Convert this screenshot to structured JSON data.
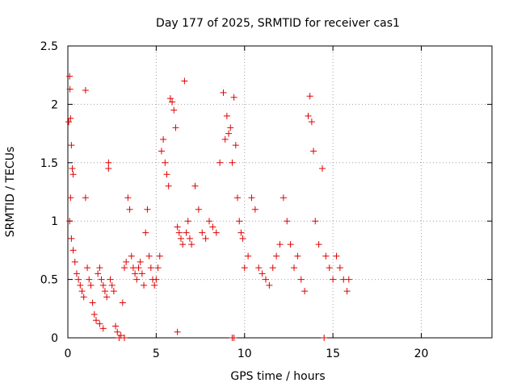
{
  "chart_data": {
    "type": "scatter",
    "title": "Day 177 of 2025, SRMTID for receiver cas1",
    "xlabel": "GPS time / hours",
    "ylabel": "SRMTID / TECUs",
    "xlim": [
      0,
      24
    ],
    "ylim": [
      0,
      2.5
    ],
    "x_ticks": [
      0,
      5,
      10,
      15,
      20
    ],
    "x_tick_labels": [
      "0",
      "5",
      "10",
      "15",
      "20"
    ],
    "y_ticks": [
      0,
      0.5,
      1,
      1.5,
      2,
      2.5
    ],
    "y_tick_labels": [
      "0",
      "0.5",
      "1",
      "1.5",
      "2",
      "2.5"
    ],
    "grid": true,
    "marker": "plus",
    "series": [
      {
        "name": "SRMTID",
        "color": "#e00000",
        "points": [
          [
            0.05,
            1.85
          ],
          [
            0.1,
            2.24
          ],
          [
            0.12,
            2.13
          ],
          [
            0.15,
            1.88
          ],
          [
            0.2,
            1.65
          ],
          [
            0.25,
            1.45
          ],
          [
            0.3,
            1.4
          ],
          [
            0.15,
            1.2
          ],
          [
            0.1,
            1.0
          ],
          [
            0.2,
            0.85
          ],
          [
            0.3,
            0.75
          ],
          [
            0.4,
            0.65
          ],
          [
            0.5,
            0.55
          ],
          [
            0.6,
            0.5
          ],
          [
            0.7,
            0.45
          ],
          [
            0.8,
            0.4
          ],
          [
            0.9,
            0.35
          ],
          [
            1.0,
            2.12
          ],
          [
            1.0,
            1.2
          ],
          [
            1.1,
            0.6
          ],
          [
            1.2,
            0.5
          ],
          [
            1.3,
            0.45
          ],
          [
            1.4,
            0.3
          ],
          [
            1.5,
            0.2
          ],
          [
            1.6,
            0.15
          ],
          [
            1.7,
            0.55
          ],
          [
            1.8,
            0.6
          ],
          [
            1.9,
            0.5
          ],
          [
            2.0,
            0.45
          ],
          [
            2.1,
            0.4
          ],
          [
            2.2,
            0.35
          ],
          [
            2.3,
            1.5
          ],
          [
            2.3,
            1.45
          ],
          [
            2.4,
            0.5
          ],
          [
            2.5,
            0.45
          ],
          [
            2.6,
            0.4
          ],
          [
            2.7,
            0.1
          ],
          [
            2.8,
            0.05
          ],
          [
            2.9,
            0.0
          ],
          [
            3.0,
            0.02
          ],
          [
            3.1,
            0.3
          ],
          [
            3.2,
            0.6
          ],
          [
            3.3,
            0.65
          ],
          [
            3.4,
            1.2
          ],
          [
            3.5,
            1.1
          ],
          [
            3.6,
            0.7
          ],
          [
            3.7,
            0.6
          ],
          [
            3.8,
            0.55
          ],
          [
            3.9,
            0.5
          ],
          [
            4.0,
            0.6
          ],
          [
            4.1,
            0.65
          ],
          [
            4.2,
            0.55
          ],
          [
            4.3,
            0.45
          ],
          [
            4.4,
            0.9
          ],
          [
            4.5,
            1.1
          ],
          [
            4.6,
            0.7
          ],
          [
            4.7,
            0.6
          ],
          [
            4.8,
            0.5
          ],
          [
            4.9,
            0.45
          ],
          [
            5.0,
            0.5
          ],
          [
            5.1,
            0.6
          ],
          [
            5.2,
            0.7
          ],
          [
            5.3,
            1.6
          ],
          [
            5.4,
            1.7
          ],
          [
            5.5,
            1.5
          ],
          [
            5.6,
            1.4
          ],
          [
            5.7,
            1.3
          ],
          [
            5.8,
            2.05
          ],
          [
            5.9,
            2.02
          ],
          [
            6.0,
            1.95
          ],
          [
            6.1,
            1.8
          ],
          [
            6.2,
            0.95
          ],
          [
            6.3,
            0.9
          ],
          [
            6.4,
            0.85
          ],
          [
            6.5,
            0.8
          ],
          [
            6.6,
            2.2
          ],
          [
            6.7,
            0.9
          ],
          [
            6.8,
            1.0
          ],
          [
            6.9,
            0.85
          ],
          [
            7.0,
            0.8
          ],
          [
            7.2,
            1.3
          ],
          [
            7.4,
            1.1
          ],
          [
            7.6,
            0.9
          ],
          [
            7.8,
            0.85
          ],
          [
            8.0,
            1.0
          ],
          [
            8.2,
            0.95
          ],
          [
            8.4,
            0.9
          ],
          [
            8.6,
            1.5
          ],
          [
            8.8,
            2.1
          ],
          [
            8.9,
            1.7
          ],
          [
            9.0,
            1.9
          ],
          [
            9.1,
            1.75
          ],
          [
            9.2,
            1.8
          ],
          [
            9.3,
            1.5
          ],
          [
            9.4,
            2.06
          ],
          [
            9.5,
            1.65
          ],
          [
            9.6,
            1.2
          ],
          [
            9.7,
            1.0
          ],
          [
            9.8,
            0.9
          ],
          [
            9.9,
            0.85
          ],
          [
            10.0,
            0.6
          ],
          [
            10.2,
            0.7
          ],
          [
            10.4,
            1.2
          ],
          [
            10.6,
            1.1
          ],
          [
            10.8,
            0.6
          ],
          [
            11.0,
            0.55
          ],
          [
            11.2,
            0.5
          ],
          [
            11.4,
            0.45
          ],
          [
            11.6,
            0.6
          ],
          [
            11.8,
            0.7
          ],
          [
            12.0,
            0.8
          ],
          [
            12.2,
            1.2
          ],
          [
            12.4,
            1.0
          ],
          [
            12.6,
            0.8
          ],
          [
            12.8,
            0.6
          ],
          [
            13.0,
            0.7
          ],
          [
            13.2,
            0.5
          ],
          [
            13.4,
            0.4
          ],
          [
            13.6,
            1.9
          ],
          [
            13.7,
            2.07
          ],
          [
            13.8,
            1.85
          ],
          [
            13.9,
            1.6
          ],
          [
            14.0,
            1.0
          ],
          [
            14.2,
            0.8
          ],
          [
            14.4,
            1.45
          ],
          [
            14.5,
            0.0
          ],
          [
            14.6,
            0.7
          ],
          [
            14.8,
            0.6
          ],
          [
            15.0,
            0.5
          ],
          [
            15.2,
            0.7
          ],
          [
            15.4,
            0.6
          ],
          [
            15.6,
            0.5
          ],
          [
            15.8,
            0.4
          ],
          [
            15.9,
            0.5
          ],
          [
            9.4,
            0.0
          ],
          [
            9.3,
            0.0
          ],
          [
            6.2,
            0.05
          ],
          [
            3.2,
            0.0
          ],
          [
            2.0,
            0.08
          ],
          [
            1.8,
            0.12
          ]
        ]
      }
    ]
  }
}
